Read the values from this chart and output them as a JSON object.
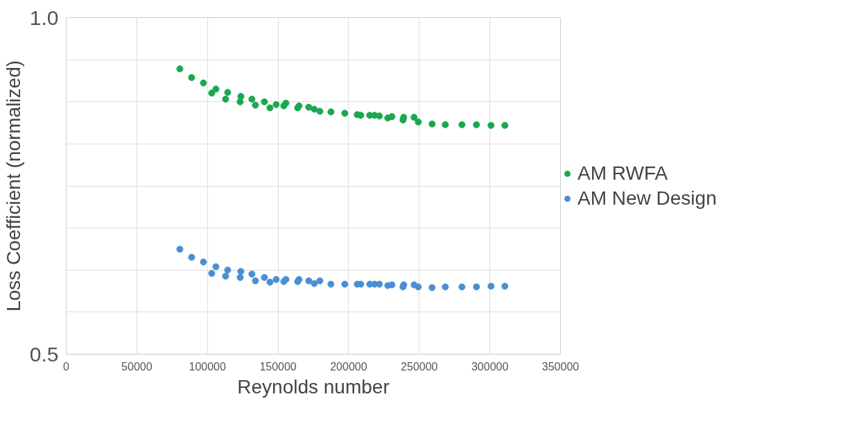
{
  "chart_data": {
    "type": "scatter",
    "xlabel": "Reynolds number",
    "ylabel": "Loss Coefficient (normalized)",
    "xlim": [
      0,
      350000
    ],
    "xticks": [
      0,
      50000,
      100000,
      150000,
      200000,
      250000,
      300000,
      350000
    ],
    "ylim": [
      0.5,
      1.0
    ],
    "yticks": [
      {
        "value": 0.5,
        "label": "0.5"
      },
      {
        "value": 0.5625,
        "label": null
      },
      {
        "value": 0.625,
        "label": null
      },
      {
        "value": 0.6875,
        "label": null
      },
      {
        "value": 0.75,
        "label": null
      },
      {
        "value": 0.8125,
        "label": null
      },
      {
        "value": 0.875,
        "label": null
      },
      {
        "value": 0.9375,
        "label": null
      },
      {
        "value": 1.0,
        "label": "1.0"
      }
    ],
    "grid": true,
    "legend": "right",
    "marker": "circle",
    "x": [
      80480,
      88820,
      97160,
      103050,
      106000,
      112860,
      114330,
      123170,
      123660,
      131510,
      133960,
      140340,
      144270,
      148680,
      154080,
      155550,
      163890,
      164870,
      171750,
      175670,
      179600,
      187450,
      197260,
      206090,
      208550,
      214930,
      218360,
      221800,
      227690,
      230630,
      238480,
      238970,
      246330,
      249280,
      259090,
      268420,
      280190,
      290500,
      300800,
      310610
    ],
    "series": [
      {
        "name": "AM RWFA",
        "color": "#1aa850",
        "values": [
          0.924,
          0.911,
          0.903,
          0.888,
          0.894,
          0.879,
          0.889,
          0.875,
          0.883,
          0.879,
          0.87,
          0.875,
          0.866,
          0.871,
          0.869,
          0.873,
          0.866,
          0.869,
          0.867,
          0.864,
          0.861,
          0.86,
          0.858,
          0.856,
          0.855,
          0.855,
          0.855,
          0.854,
          0.851,
          0.853,
          0.848,
          0.852,
          0.852,
          0.845,
          0.842,
          0.841,
          0.841,
          0.841,
          0.84,
          0.84
        ]
      },
      {
        "name": "AM New Design",
        "color": "#4a8fd4",
        "values": [
          0.656,
          0.644,
          0.637,
          0.62,
          0.63,
          0.616,
          0.625,
          0.614,
          0.623,
          0.619,
          0.609,
          0.614,
          0.607,
          0.611,
          0.608,
          0.611,
          0.608,
          0.611,
          0.609,
          0.605,
          0.609,
          0.604,
          0.604,
          0.604,
          0.604,
          0.604,
          0.604,
          0.604,
          0.602,
          0.603,
          0.6,
          0.603,
          0.603,
          0.6,
          0.599,
          0.6,
          0.6,
          0.6,
          0.601,
          0.601
        ]
      }
    ]
  }
}
